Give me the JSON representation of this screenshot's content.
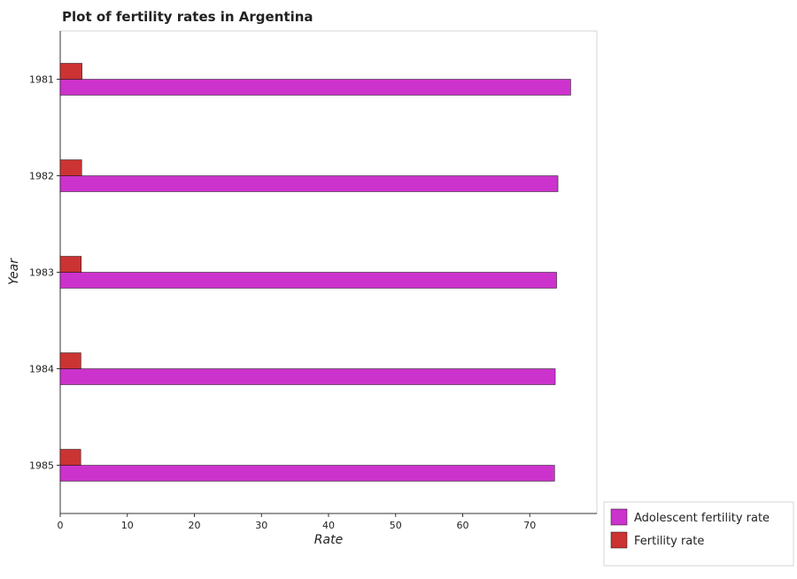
{
  "chart_data": {
    "type": "bar",
    "orientation": "horizontal",
    "title": "Plot of fertility rates in Argentina",
    "xlabel": "Rate",
    "ylabel": "Year",
    "categories": [
      "1981",
      "1982",
      "1983",
      "1984",
      "1985"
    ],
    "series": [
      {
        "name": "Adolescent fertility rate",
        "color": "#cc33cc",
        "values": [
          76.1,
          74.2,
          74.0,
          73.8,
          73.7
        ]
      },
      {
        "name": "Fertility rate",
        "color": "#cc3333",
        "values": [
          3.25,
          3.2,
          3.14,
          3.09,
          3.06
        ]
      }
    ],
    "xlim": [
      0,
      80
    ],
    "xticks": [
      0,
      10,
      20,
      30,
      40,
      50,
      60,
      70
    ],
    "grid": false,
    "legend_position": "bottom-right"
  }
}
